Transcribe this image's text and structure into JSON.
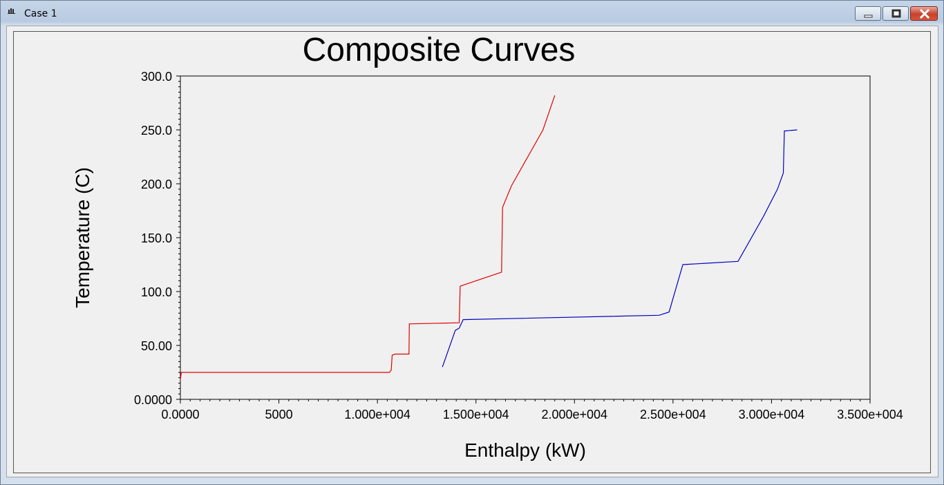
{
  "window": {
    "title": "Case 1",
    "icon": "app-icon",
    "controls": [
      "minimize-icon",
      "maximize-icon",
      "close-icon"
    ]
  },
  "chart_data": {
    "type": "line",
    "title": "Composite Curves",
    "xlabel": "Enthalpy (kW)",
    "ylabel": "Temperature (C)",
    "xlim": [
      0,
      35000
    ],
    "ylim": [
      0,
      300
    ],
    "x_ticks": [
      0,
      5000,
      10000,
      15000,
      20000,
      25000,
      30000,
      35000
    ],
    "x_tick_labels": [
      "0.0000",
      "5000",
      "1.000e+004",
      "1.500e+004",
      "2.000e+004",
      "2.500e+004",
      "3.000e+004",
      "3.500e+004"
    ],
    "y_ticks": [
      0,
      50,
      100,
      150,
      200,
      250,
      300
    ],
    "y_tick_labels": [
      "0.0000",
      "50.00",
      "100.0",
      "150.0",
      "200.0",
      "250.0",
      "300.0"
    ],
    "grid": false,
    "legend": "none",
    "series": [
      {
        "color": "#e00000",
        "points": [
          [
            0,
            18
          ],
          [
            50,
            25
          ],
          [
            10600,
            25
          ],
          [
            10700,
            27
          ],
          [
            10750,
            41
          ],
          [
            10900,
            42
          ],
          [
            11600,
            42
          ],
          [
            11620,
            70
          ],
          [
            14150,
            71
          ],
          [
            14200,
            105
          ],
          [
            16300,
            118
          ],
          [
            16350,
            178
          ],
          [
            16800,
            198
          ],
          [
            18400,
            250
          ],
          [
            19000,
            282
          ]
        ]
      },
      {
        "color": "#0000c0",
        "points": [
          [
            13300,
            30
          ],
          [
            13950,
            64
          ],
          [
            14150,
            66
          ],
          [
            14350,
            74
          ],
          [
            24300,
            78
          ],
          [
            24800,
            81
          ],
          [
            25500,
            125
          ],
          [
            28300,
            128
          ],
          [
            29600,
            170
          ],
          [
            30300,
            195
          ],
          [
            30600,
            210
          ],
          [
            30650,
            249
          ],
          [
            31300,
            250
          ]
        ]
      }
    ]
  }
}
